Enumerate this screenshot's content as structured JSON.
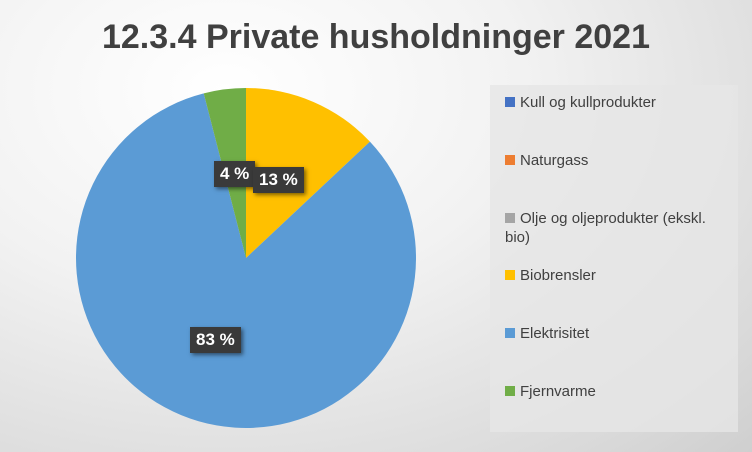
{
  "chart_data": {
    "type": "pie",
    "title": "12.3.4 Private husholdninger 2021",
    "start_angle": "top, clockwise",
    "legend_position": "right",
    "slices": [
      {
        "label": "Kull og kullprodukter",
        "value": 0,
        "color": "#4472c4",
        "data_label": ""
      },
      {
        "label": "Naturgass",
        "value": 0,
        "color": "#ed7d31",
        "data_label": ""
      },
      {
        "label": "Olje og oljeprodukter (ekskl. bio)",
        "value": 0,
        "color": "#a5a5a5",
        "data_label": ""
      },
      {
        "label": "Biobrensler",
        "value": 13,
        "color": "#ffc000",
        "data_label": "13 %"
      },
      {
        "label": "Elektrisitet",
        "value": 83,
        "color": "#5b9bd5",
        "data_label": "83 %"
      },
      {
        "label": "Fjernvarme",
        "value": 4,
        "color": "#70ad47",
        "data_label": "4 %"
      }
    ]
  }
}
